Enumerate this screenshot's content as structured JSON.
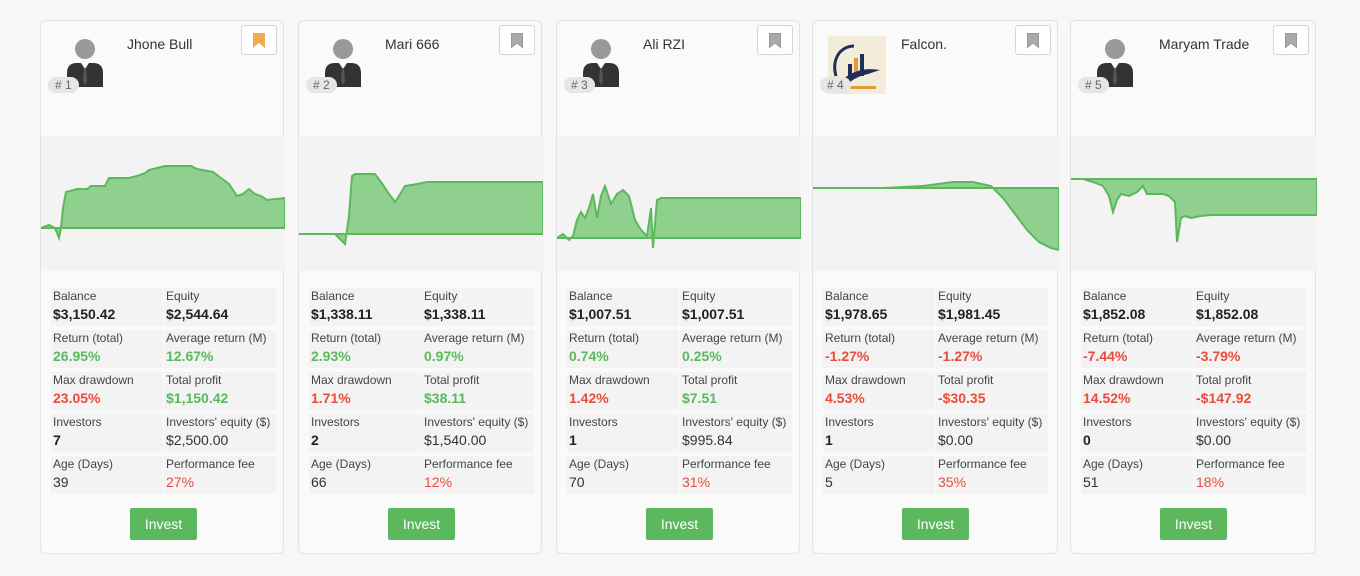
{
  "labels": {
    "balance": "Balance",
    "equity": "Equity",
    "return_total": "Return (total)",
    "average_return": "Average return (M)",
    "max_drawdown": "Max drawdown",
    "total_profit": "Total profit",
    "investors": "Investors",
    "investors_equity": "Investors' equity ($)",
    "age_days": "Age (Days)",
    "performance_fee": "Performance fee",
    "invest_button": "Invest"
  },
  "colors": {
    "positive": "#5cb85c",
    "negative": "#e74c3c",
    "chart_fill": "#8fd08f",
    "chart_line": "#5cb85c",
    "bookmark_active": "#f0ad4e"
  },
  "cards": [
    {
      "rank": "# 1",
      "name": "Jhone Bull",
      "avatar": "person-icon",
      "bookmarked": true,
      "balance": "$3,150.42",
      "equity": "$2,544.64",
      "return_total": "26.95%",
      "average_return": "12.67%",
      "max_drawdown": "23.05%",
      "total_profit": "$1,150.42",
      "investors": "7",
      "investors_equity": "$2,500.00",
      "age_days": "39",
      "performance_fee": "27%"
    },
    {
      "rank": "# 2",
      "name": "Mari 666",
      "avatar": "person-icon",
      "bookmarked": false,
      "balance": "$1,338.11",
      "equity": "$1,338.11",
      "return_total": "2.93%",
      "average_return": "0.97%",
      "max_drawdown": "1.71%",
      "total_profit": "$38.11",
      "investors": "2",
      "investors_equity": "$1,540.00",
      "age_days": "66",
      "performance_fee": "12%"
    },
    {
      "rank": "# 3",
      "name": "Ali RZI",
      "avatar": "person-icon",
      "bookmarked": false,
      "balance": "$1,007.51",
      "equity": "$1,007.51",
      "return_total": "0.74%",
      "average_return": "0.25%",
      "max_drawdown": "1.42%",
      "total_profit": "$7.51",
      "investors": "1",
      "investors_equity": "$995.84",
      "age_days": "70",
      "performance_fee": "31%"
    },
    {
      "rank": "# 4",
      "name": "Falcon.",
      "avatar": "falcon-logo",
      "bookmarked": false,
      "balance": "$1,978.65",
      "equity": "$1,981.45",
      "return_total": "-1.27%",
      "average_return": "-1.27%",
      "max_drawdown": "4.53%",
      "total_profit": "-$30.35",
      "investors": "1",
      "investors_equity": "$0.00",
      "age_days": "5",
      "performance_fee": "35%"
    },
    {
      "rank": "# 5",
      "name": "Maryam Trade",
      "avatar": "person-icon",
      "bookmarked": false,
      "balance": "$1,852.08",
      "equity": "$1,852.08",
      "return_total": "-7.44%",
      "average_return": "-3.79%",
      "max_drawdown": "14.52%",
      "total_profit": "-$147.92",
      "investors": "0",
      "investors_equity": "$0.00",
      "age_days": "51",
      "performance_fee": "18%"
    }
  ]
}
